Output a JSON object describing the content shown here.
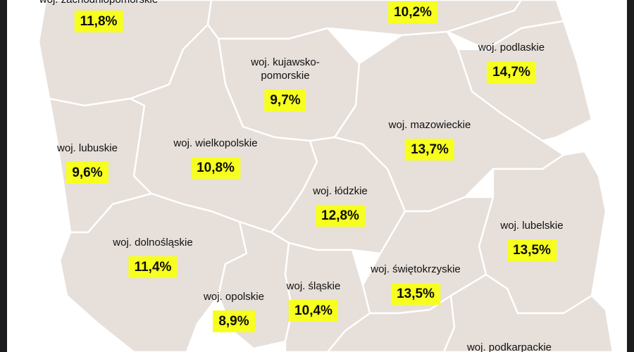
{
  "map": {
    "colors": {
      "region_fill": "#e6dfda",
      "border": "#ffffff",
      "highlight": "#f7ff1f",
      "text": "#111111"
    },
    "regions": [
      {
        "id": "zachodniopomorskie",
        "name": "woj. zachodniopomorskie",
        "value": "11,8%"
      },
      {
        "id": "pomorskie",
        "name": "",
        "value": "10,2%"
      },
      {
        "id": "kujawsko-pomorskie",
        "name_line1": "woj. kujawsko-",
        "name_line2": "pomorskie",
        "value": "9,7%"
      },
      {
        "id": "podlaskie",
        "name": "woj. podlaskie",
        "value": "14,7%"
      },
      {
        "id": "mazowieckie",
        "name": "woj. mazowieckie",
        "value": "13,7%"
      },
      {
        "id": "lubuskie",
        "name": "woj. lubuskie",
        "value": "9,6%"
      },
      {
        "id": "wielkopolskie",
        "name": "woj. wielkopolskie",
        "value": "10,8%"
      },
      {
        "id": "lodzkie",
        "name": "woj. łódzkie",
        "value": "12,8%"
      },
      {
        "id": "lubelskie",
        "name": "woj. lubelskie",
        "value": "13,5%"
      },
      {
        "id": "dolnoslaskie",
        "name": "woj. dolnośląskie",
        "value": "11,4%"
      },
      {
        "id": "swietokrzyskie",
        "name": "woj. świętokrzyskie",
        "value": "13,5%"
      },
      {
        "id": "opolskie",
        "name": "woj. opolskie",
        "value": "8,9%"
      },
      {
        "id": "slaskie",
        "name": "woj. śląskie",
        "value": "10,4%"
      },
      {
        "id": "podkarpackie",
        "name": "woj. podkarpackie",
        "value": ""
      }
    ]
  }
}
